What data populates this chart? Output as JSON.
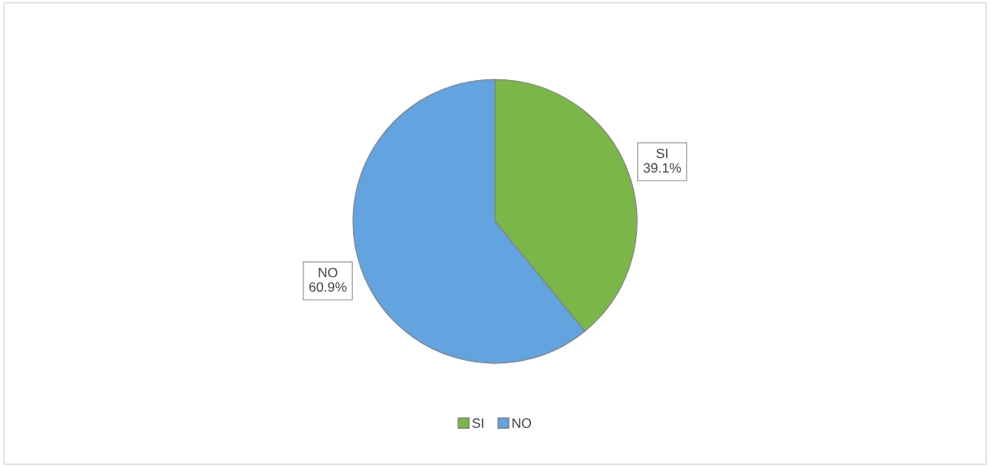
{
  "chart_data": {
    "type": "pie",
    "categories": [
      "SI",
      "NO"
    ],
    "values": [
      39.1,
      60.9
    ],
    "colors": [
      "#7ab648",
      "#62a3e0"
    ],
    "value_labels": [
      "SI\n39.1%",
      "NO\n60.9%"
    ],
    "legend": "bottom"
  }
}
